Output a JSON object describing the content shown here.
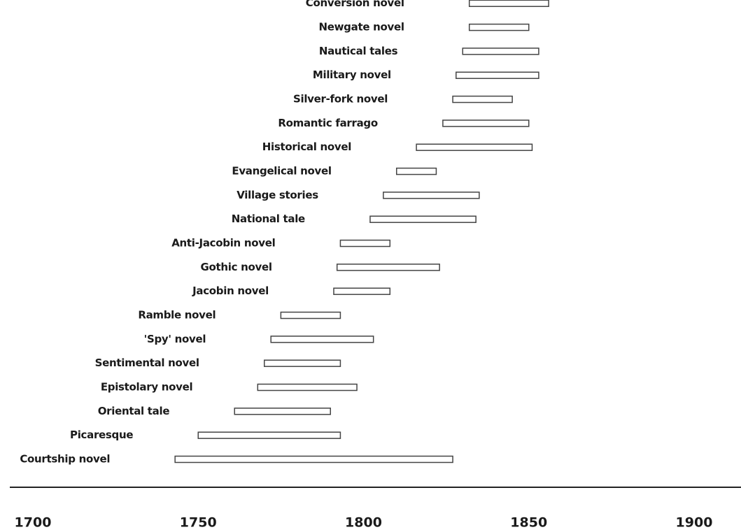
{
  "chart_data": {
    "type": "range-bar",
    "categories": [
      "Courtship novel",
      "Picaresque",
      "Oriental tale",
      "Epistolary novel",
      "Sentimental novel",
      "'Spy' novel",
      "Ramble novel",
      "Jacobin novel",
      "Gothic novel",
      "Anti-Jacobin novel",
      "National tale",
      "Village stories",
      "Evangelical novel",
      "Historical novel",
      "Romantic farrago",
      "Silver-fork novel",
      "Military novel",
      "Nautical tales",
      "Newgate novel",
      "Conversion novel"
    ],
    "starts": [
      1743,
      1750,
      1761,
      1768,
      1770,
      1772,
      1775,
      1791,
      1792,
      1793,
      1802,
      1806,
      1810,
      1816,
      1824,
      1827,
      1828,
      1830,
      1832,
      1832
    ],
    "ends": [
      1827,
      1793,
      1790,
      1798,
      1793,
      1803,
      1793,
      1808,
      1823,
      1808,
      1834,
      1835,
      1822,
      1851,
      1850,
      1845,
      1853,
      1853,
      1850,
      1856
    ],
    "color": "#ffffff",
    "xlim": [
      1700,
      1900
    ],
    "xticks": [
      1700,
      1750,
      1800,
      1850,
      1900
    ]
  }
}
